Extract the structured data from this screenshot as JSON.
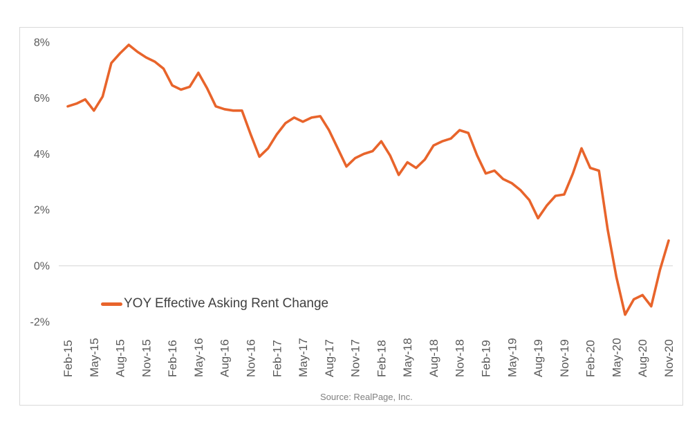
{
  "chart_data": {
    "type": "line",
    "title": "",
    "legend_label": "YOY Effective Asking Rent Change",
    "source": "Source: RealPage, Inc.",
    "line_color": "#E8642B",
    "grid_color": "#D9D9D9",
    "axis_label_color": "#595959",
    "legend_position": "inside-bottom-left",
    "grid": "horizontal line at 0% only",
    "ylim": [
      -2.8,
      8.6
    ],
    "y_ticks": [
      {
        "label": "8%",
        "value": 8
      },
      {
        "label": "6%",
        "value": 6
      },
      {
        "label": "4%",
        "value": 4
      },
      {
        "label": "2%",
        "value": 2
      },
      {
        "label": "0%",
        "value": 0
      },
      {
        "label": "-2%",
        "value": -2
      }
    ],
    "x_tick_every": 3,
    "x_tick_labels": [
      "Feb-15",
      "May-15",
      "Aug-15",
      "Nov-15",
      "Feb-16",
      "May-16",
      "Aug-16",
      "Nov-16",
      "Feb-17",
      "May-17",
      "Aug-17",
      "Nov-17",
      "Feb-18",
      "May-18",
      "Aug-18",
      "Nov-18",
      "Feb-19",
      "May-19",
      "Aug-19",
      "Nov-19",
      "Feb-20",
      "May-20",
      "Aug-20",
      "Nov-20"
    ],
    "x": [
      "Feb-15",
      "Mar-15",
      "Apr-15",
      "May-15",
      "Jun-15",
      "Jul-15",
      "Aug-15",
      "Sep-15",
      "Oct-15",
      "Nov-15",
      "Dec-15",
      "Jan-16",
      "Feb-16",
      "Mar-16",
      "Apr-16",
      "May-16",
      "Jun-16",
      "Jul-16",
      "Aug-16",
      "Sep-16",
      "Oct-16",
      "Nov-16",
      "Dec-16",
      "Jan-17",
      "Feb-17",
      "Mar-17",
      "Apr-17",
      "May-17",
      "Jun-17",
      "Jul-17",
      "Aug-17",
      "Sep-17",
      "Oct-17",
      "Nov-17",
      "Dec-17",
      "Jan-18",
      "Feb-18",
      "Mar-18",
      "Apr-18",
      "May-18",
      "Jun-18",
      "Jul-18",
      "Aug-18",
      "Sep-18",
      "Oct-18",
      "Nov-18",
      "Dec-18",
      "Jan-19",
      "Feb-19",
      "Mar-19",
      "Apr-19",
      "May-19",
      "Jun-19",
      "Jul-19",
      "Aug-19",
      "Sep-19",
      "Oct-19",
      "Nov-19",
      "Dec-19",
      "Jan-20",
      "Feb-20",
      "Mar-20",
      "Apr-20",
      "May-20",
      "Jun-20",
      "Jul-20",
      "Aug-20",
      "Sep-20",
      "Oct-20",
      "Nov-20"
    ],
    "series": [
      {
        "name": "YOY Effective Asking Rent Change",
        "unit": "%",
        "values": [
          5.7,
          5.8,
          5.95,
          5.55,
          6.05,
          7.25,
          7.6,
          7.9,
          7.65,
          7.45,
          7.3,
          7.05,
          6.45,
          6.3,
          6.4,
          6.9,
          6.35,
          5.7,
          5.6,
          5.55,
          5.55,
          4.7,
          3.9,
          4.2,
          4.7,
          5.1,
          5.3,
          5.15,
          5.3,
          5.35,
          4.85,
          4.2,
          3.55,
          3.85,
          4.0,
          4.1,
          4.45,
          3.95,
          3.25,
          3.7,
          3.5,
          3.8,
          4.3,
          4.45,
          4.55,
          4.85,
          4.75,
          3.95,
          3.3,
          3.4,
          3.1,
          2.95,
          2.7,
          2.35,
          1.7,
          2.15,
          2.5,
          2.55,
          3.3,
          4.2,
          3.5,
          3.4,
          1.3,
          -0.4,
          -1.75,
          -1.2,
          -1.05,
          -1.45,
          -0.15,
          0.9
        ]
      }
    ]
  }
}
